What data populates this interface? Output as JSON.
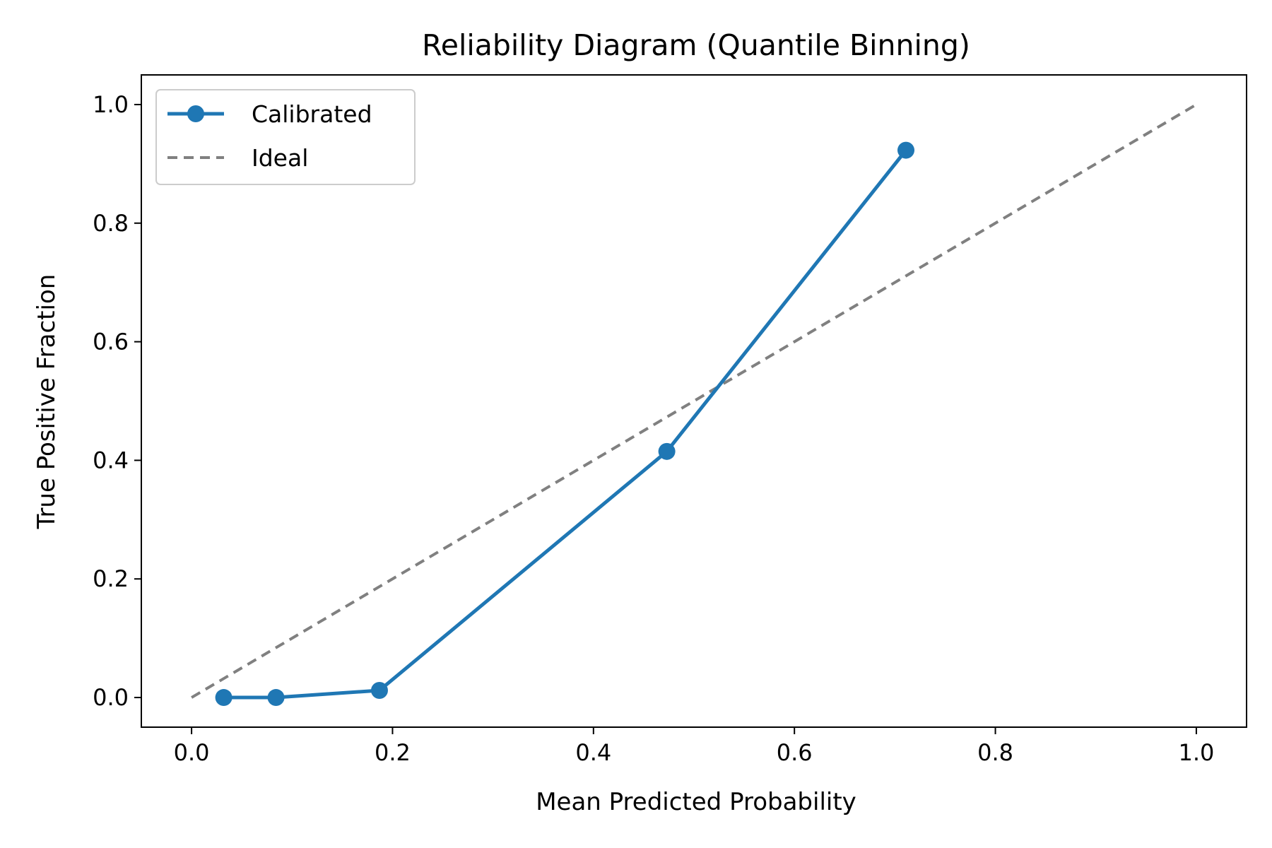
{
  "chart_data": {
    "type": "line",
    "title": "Reliability Diagram (Quantile Binning)",
    "xlabel": "Mean Predicted Probability",
    "ylabel": "True Positive Fraction",
    "xlim": [
      -0.05,
      1.05
    ],
    "ylim": [
      -0.05,
      1.05
    ],
    "xticks": [
      "0.0",
      "0.2",
      "0.4",
      "0.6",
      "0.8",
      "1.0"
    ],
    "yticks": [
      "0.0",
      "0.2",
      "0.4",
      "0.6",
      "0.8",
      "1.0"
    ],
    "grid": false,
    "legend_position": "top-left",
    "series": [
      {
        "name": "Calibrated",
        "style": "solid-with-markers",
        "color": "#1f77b4",
        "x": [
          0.032,
          0.084,
          0.187,
          0.473,
          0.711
        ],
        "y": [
          0.0,
          0.0,
          0.012,
          0.415,
          0.923
        ]
      },
      {
        "name": "Ideal",
        "style": "dashed",
        "color": "#808080",
        "x": [
          0.0,
          1.0
        ],
        "y": [
          0.0,
          1.0
        ]
      }
    ]
  }
}
